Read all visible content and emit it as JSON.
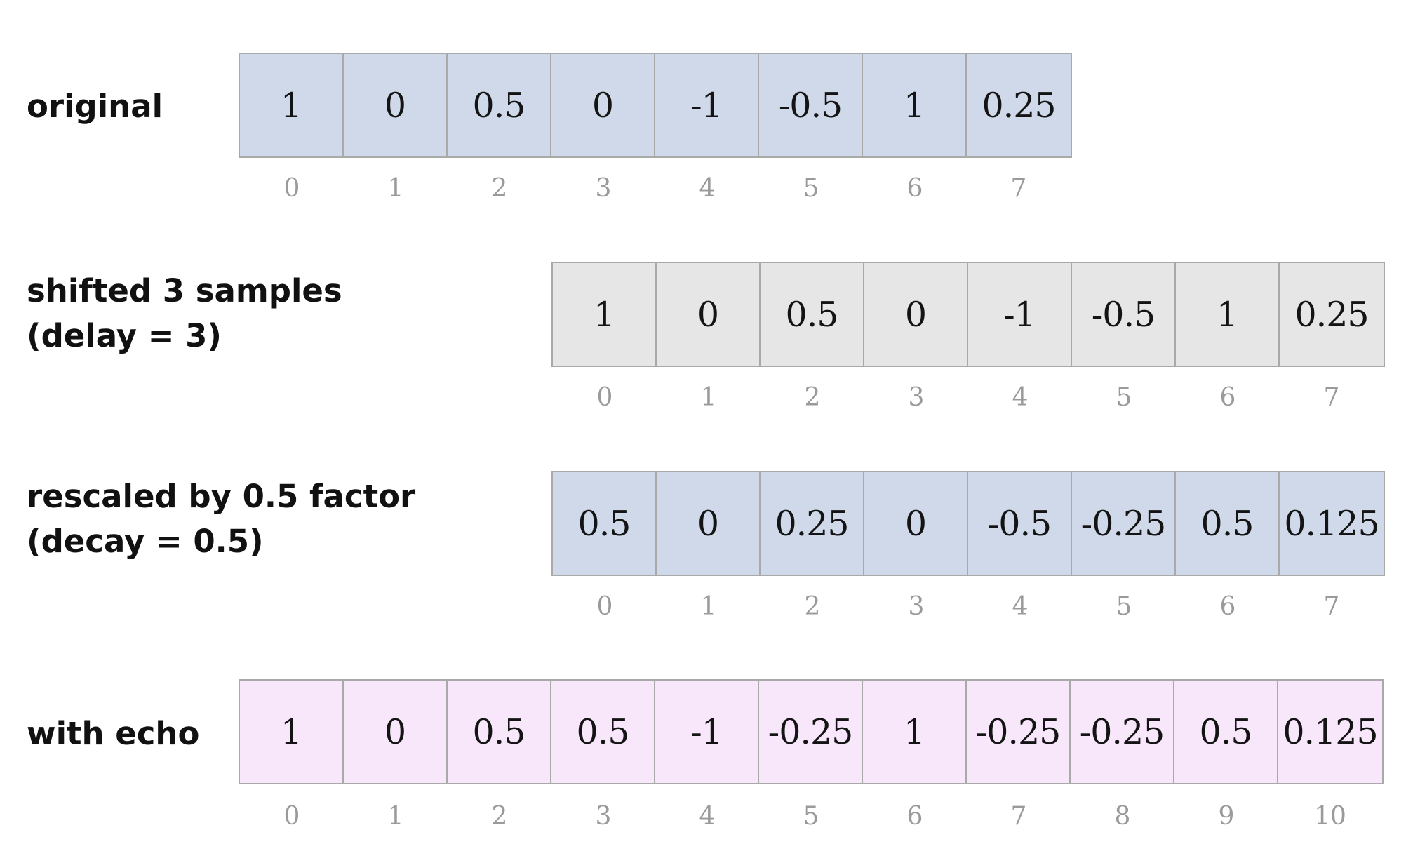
{
  "colors": {
    "blue": "#cfd9e9",
    "gray": "#e6e6e6",
    "pink": "#f8e6fa",
    "border": "#a9a9a9",
    "index_text": "#9a9a9a"
  },
  "rows": [
    {
      "key": "original",
      "label_lines": [
        "original"
      ],
      "fill": "blue",
      "values": [
        "1",
        "0",
        "0.5",
        "0",
        "-1",
        "-0.5",
        "1",
        "0.25"
      ],
      "indices": [
        "0",
        "1",
        "2",
        "3",
        "4",
        "5",
        "6",
        "7"
      ]
    },
    {
      "key": "shifted",
      "label_lines": [
        "shifted 3 samples",
        "(delay = 3)"
      ],
      "fill": "gray",
      "values": [
        "1",
        "0",
        "0.5",
        "0",
        "-1",
        "-0.5",
        "1",
        "0.25"
      ],
      "indices": [
        "0",
        "1",
        "2",
        "3",
        "4",
        "5",
        "6",
        "7"
      ]
    },
    {
      "key": "rescaled",
      "label_lines": [
        "rescaled by 0.5 factor",
        "(decay = 0.5)"
      ],
      "fill": "blue",
      "values": [
        "0.5",
        "0",
        "0.25",
        "0",
        "-0.5",
        "-0.25",
        "0.5",
        "0.125"
      ],
      "indices": [
        "0",
        "1",
        "2",
        "3",
        "4",
        "5",
        "6",
        "7"
      ]
    },
    {
      "key": "echo",
      "label_lines": [
        "with echo"
      ],
      "fill": "pink",
      "values": [
        "1",
        "0",
        "0.5",
        "0.5",
        "-1",
        "-0.25",
        "1",
        "-0.25",
        "-0.25",
        "0.5",
        "0.125"
      ],
      "indices": [
        "0",
        "1",
        "2",
        "3",
        "4",
        "5",
        "6",
        "7",
        "8",
        "9",
        "10"
      ]
    }
  ]
}
